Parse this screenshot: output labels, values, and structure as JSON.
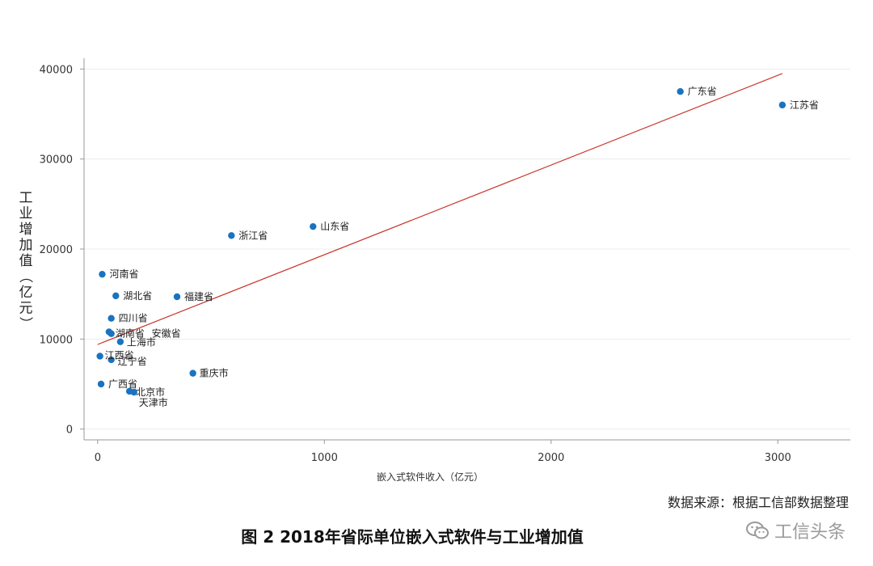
{
  "chart_data": {
    "type": "scatter",
    "xlabel": "嵌入式软件收入（亿元）",
    "ylabel": "工业增加值（亿元）",
    "xlim": [
      -60,
      3320
    ],
    "ylim": [
      -1200,
      41200
    ],
    "xticks": [
      0,
      1000,
      2000,
      3000
    ],
    "yticks": [
      0,
      10000,
      20000,
      30000,
      40000
    ],
    "grid": "horizontal",
    "point_color": "#1a73c0",
    "trendline": {
      "color": "#c8382c",
      "x": [
        0,
        3020
      ],
      "y": [
        9400,
        39500
      ]
    },
    "points": [
      {
        "label": "广东省",
        "x": 2570,
        "y": 37500
      },
      {
        "label": "江苏省",
        "x": 3020,
        "y": 36000
      },
      {
        "label": "山东省",
        "x": 950,
        "y": 22500
      },
      {
        "label": "浙江省",
        "x": 590,
        "y": 21500
      },
      {
        "label": "河南省",
        "x": 20,
        "y": 17200
      },
      {
        "label": "湖北省",
        "x": 80,
        "y": 14800
      },
      {
        "label": "福建省",
        "x": 350,
        "y": 14700
      },
      {
        "label": "四川省",
        "x": 60,
        "y": 12300
      },
      {
        "label": "湖南省",
        "x": 50,
        "y": 10800
      },
      {
        "label": "安徽省",
        "x": 60,
        "y": 10600
      },
      {
        "label": "上海市",
        "x": 100,
        "y": 9700
      },
      {
        "label": "江西省",
        "x": 10,
        "y": 8100
      },
      {
        "label": "辽宁省",
        "x": 60,
        "y": 7700
      },
      {
        "label": "重庆市",
        "x": 420,
        "y": 6200
      },
      {
        "label": "广西省",
        "x": 15,
        "y": 5000
      },
      {
        "label": "北京市",
        "x": 140,
        "y": 4200
      },
      {
        "label": "天津市",
        "x": 160,
        "y": 4100
      }
    ]
  },
  "source_text": "数据来源：根据工信部数据整理",
  "caption": "图 2  2018年省际单位嵌入式软件与工业增加值",
  "watermark": {
    "icon": "wechat-icon",
    "text": "工信头条"
  }
}
